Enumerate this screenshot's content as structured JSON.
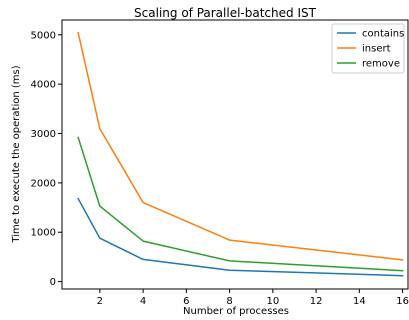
{
  "chart_data": {
    "type": "line",
    "title": "Scaling of Parallel-batched IST",
    "xlabel": "Number of processes",
    "ylabel": "Time to execute the operation (ms)",
    "x": [
      1,
      2,
      4,
      8,
      16
    ],
    "xticks": [
      2,
      4,
      6,
      8,
      10,
      12,
      14,
      16
    ],
    "yticks": [
      0,
      1000,
      2000,
      3000,
      4000,
      5000
    ],
    "xlim": [
      0.25,
      16.25
    ],
    "ylim": [
      -150,
      5300
    ],
    "legend_position": "top-right",
    "series": [
      {
        "name": "contains",
        "color": "#1f77b4",
        "values": [
          1680,
          880,
          450,
          230,
          120
        ]
      },
      {
        "name": "insert",
        "color": "#ff7f0e",
        "values": [
          5040,
          3100,
          1600,
          840,
          440
        ]
      },
      {
        "name": "remove",
        "color": "#2ca02c",
        "values": [
          2920,
          1530,
          820,
          420,
          220
        ]
      }
    ]
  }
}
